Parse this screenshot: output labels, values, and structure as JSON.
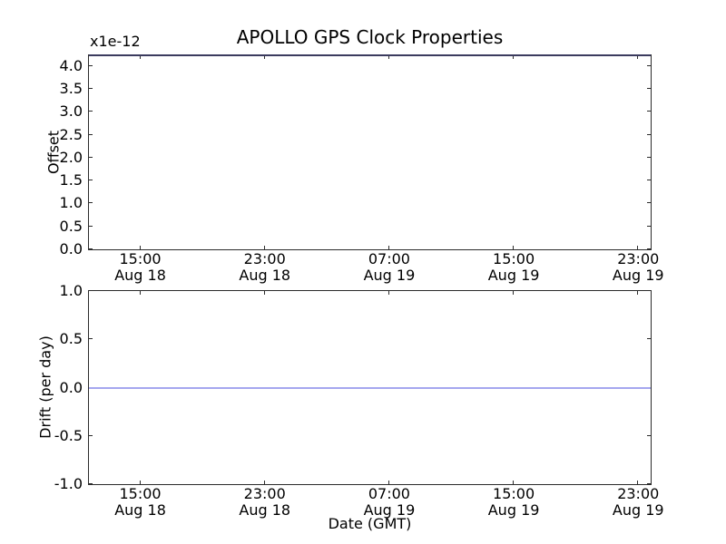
{
  "chart_data": {
    "type": "line",
    "title": "APOLLO GPS Clock Properties",
    "background_color": "#ffffff",
    "spine_color": "#2b2b2b",
    "grid": false,
    "legend": "none",
    "plots": [
      {
        "name": "offset-subplot",
        "scale_label": "x1e-12",
        "ylabel": "Offset",
        "xlabel": "",
        "ylim": [
          0.0,
          4.23
        ],
        "yticks": [
          {
            "value": 0.0,
            "label": "0.0"
          },
          {
            "value": 0.5,
            "label": "0.5"
          },
          {
            "value": 1.0,
            "label": "1.0"
          },
          {
            "value": 1.5,
            "label": "1.5"
          },
          {
            "value": 2.0,
            "label": "2.0"
          },
          {
            "value": 2.5,
            "label": "2.5"
          },
          {
            "value": 3.0,
            "label": "3.0"
          },
          {
            "value": 3.5,
            "label": "3.5"
          },
          {
            "value": 4.0,
            "label": "4.0"
          }
        ],
        "xlim_hours": [
          11.7,
          47.8
        ],
        "xlim_note": "hours since Aug 18 00:00 GMT",
        "xticks": [
          {
            "hour": 15,
            "time": "15:00",
            "date": "Aug 18"
          },
          {
            "hour": 23,
            "time": "23:00",
            "date": "Aug 18"
          },
          {
            "hour": 31,
            "time": "07:00",
            "date": "Aug 19"
          },
          {
            "hour": 39,
            "time": "15:00",
            "date": "Aug 19"
          },
          {
            "hour": 47,
            "time": "23:00",
            "date": "Aug 19"
          }
        ],
        "series": [
          {
            "name": "offset",
            "shape": "constant-horizontal-line",
            "value": 4.23,
            "display_color": "#3b3b5e",
            "position_note": "flat line coincident with top spine"
          }
        ]
      },
      {
        "name": "drift-subplot",
        "scale_label": "",
        "ylabel": "Drift (per day)",
        "xlabel": "Date (GMT)",
        "ylim": [
          -1.0,
          1.0
        ],
        "yticks": [
          {
            "value": -1.0,
            "label": "-1.0"
          },
          {
            "value": -0.5,
            "label": "-0.5"
          },
          {
            "value": 0.0,
            "label": "0.0"
          },
          {
            "value": 0.5,
            "label": "0.5"
          },
          {
            "value": 1.0,
            "label": "1.0"
          }
        ],
        "xlim_hours": [
          11.7,
          47.8
        ],
        "xlim_note": "hours since Aug 18 00:00 GMT",
        "xticks": [
          {
            "hour": 15,
            "time": "15:00",
            "date": "Aug 18"
          },
          {
            "hour": 23,
            "time": "23:00",
            "date": "Aug 18"
          },
          {
            "hour": 31,
            "time": "07:00",
            "date": "Aug 19"
          },
          {
            "hour": 39,
            "time": "15:00",
            "date": "Aug 19"
          },
          {
            "hour": 47,
            "time": "23:00",
            "date": "Aug 19"
          }
        ],
        "series": [
          {
            "name": "drift",
            "shape": "constant-horizontal-line",
            "value": 0.0,
            "display_color": "#a5a7ef"
          }
        ]
      }
    ]
  }
}
